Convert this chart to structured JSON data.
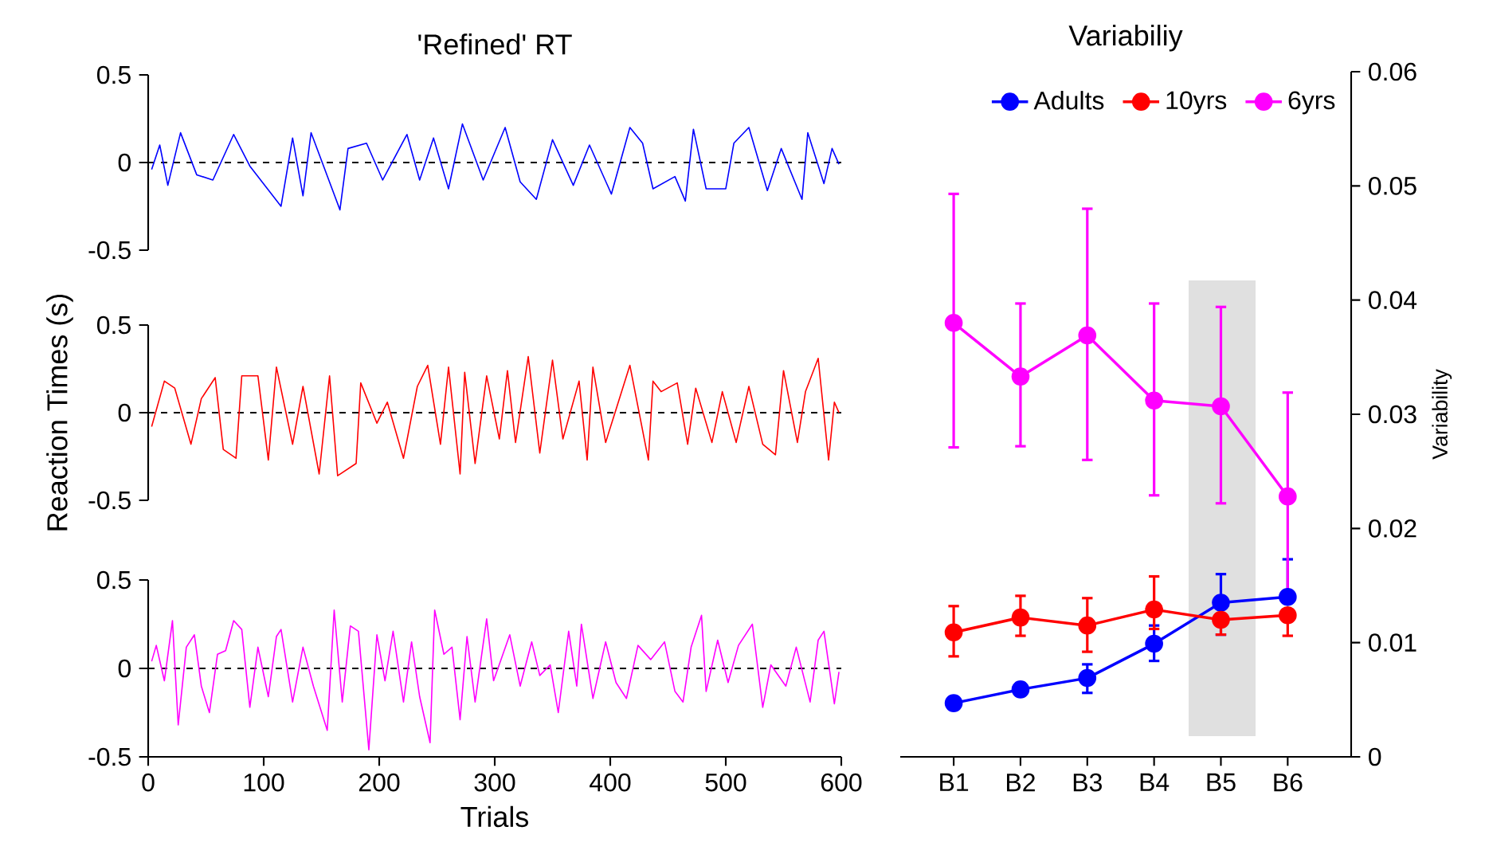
{
  "chart_data": [
    {
      "type": "line",
      "title": "'Refined' RT",
      "xlim": [
        0,
        600
      ],
      "ylim": [
        -0.5,
        0.5
      ],
      "yticks": [
        -0.5,
        0,
        0.5
      ],
      "tick_labels": "y",
      "ref_lines": [
        {
          "axis": "y",
          "value": 0,
          "color": "#000000",
          "line_style": "dashed"
        }
      ],
      "series": [
        {
          "color": "#0000ff",
          "x": [
            3,
            10,
            17,
            28,
            42,
            56,
            74,
            88,
            115,
            125,
            134,
            141,
            166,
            173,
            189,
            203,
            224,
            235,
            247,
            260,
            272,
            290,
            309,
            322,
            336,
            350,
            368,
            382,
            401,
            417,
            428,
            437,
            456,
            465,
            472,
            483,
            500,
            507,
            520,
            536,
            548,
            566,
            571,
            585,
            592,
            598
          ],
          "values": [
            -0.04,
            0.1,
            -0.13,
            0.17,
            -0.07,
            -0.1,
            0.16,
            -0.02,
            -0.25,
            0.14,
            -0.19,
            0.17,
            -0.27,
            0.08,
            0.11,
            -0.1,
            0.16,
            -0.1,
            0.14,
            -0.15,
            0.22,
            -0.1,
            0.2,
            -0.11,
            -0.21,
            0.13,
            -0.13,
            0.1,
            -0.18,
            0.2,
            0.11,
            -0.15,
            -0.08,
            -0.22,
            0.19,
            -0.15,
            -0.15,
            0.11,
            0.2,
            -0.16,
            0.08,
            -0.21,
            0.17,
            -0.12,
            0.08,
            -0.01
          ]
        }
      ]
    },
    {
      "type": "line",
      "ylabel": "Reaction Times (s)",
      "xlim": [
        0,
        600
      ],
      "ylim": [
        -0.5,
        0.5
      ],
      "yticks": [
        -0.5,
        0,
        0.5
      ],
      "tick_labels": "y",
      "ref_lines": [
        {
          "axis": "y",
          "value": 0,
          "color": "#000000",
          "line_style": "dashed"
        }
      ],
      "series": [
        {
          "color": "#ff0000",
          "x": [
            3,
            14,
            23,
            37,
            46,
            58,
            65,
            76,
            81,
            95,
            104,
            111,
            125,
            134,
            148,
            157,
            164,
            180,
            184,
            198,
            207,
            221,
            233,
            242,
            253,
            260,
            270,
            274,
            283,
            293,
            304,
            311,
            318,
            329,
            339,
            350,
            359,
            373,
            380,
            385,
            396,
            417,
            433,
            437,
            444,
            458,
            467,
            474,
            488,
            497,
            509,
            520,
            532,
            543,
            550,
            562,
            569,
            580,
            589,
            594,
            598
          ],
          "values": [
            -0.08,
            0.18,
            0.14,
            -0.18,
            0.08,
            0.2,
            -0.21,
            -0.26,
            0.21,
            0.21,
            -0.27,
            0.26,
            -0.18,
            0.15,
            -0.35,
            0.21,
            -0.36,
            -0.29,
            0.17,
            -0.06,
            0.06,
            -0.26,
            0.15,
            0.27,
            -0.18,
            0.26,
            -0.35,
            0.23,
            -0.29,
            0.21,
            -0.15,
            0.24,
            -0.17,
            0.32,
            -0.23,
            0.3,
            -0.15,
            0.18,
            -0.27,
            0.26,
            -0.17,
            0.27,
            -0.27,
            0.18,
            0.12,
            0.17,
            -0.18,
            0.14,
            -0.17,
            0.12,
            -0.17,
            0.15,
            -0.18,
            -0.24,
            0.24,
            -0.17,
            0.12,
            0.31,
            -0.27,
            0.06,
            0
          ]
        }
      ]
    },
    {
      "type": "line",
      "xlabel": "Trials",
      "xlim": [
        0,
        600
      ],
      "xticks": [
        0,
        100,
        200,
        300,
        400,
        500,
        600
      ],
      "ylim": [
        -0.5,
        0.5
      ],
      "yticks": [
        -0.5,
        0,
        0.5
      ],
      "ref_lines": [
        {
          "axis": "y",
          "value": 0,
          "color": "#000000",
          "line_style": "dashed"
        }
      ],
      "series": [
        {
          "color": "#ff00ff",
          "x": [
            3,
            7,
            14,
            21,
            26,
            33,
            40,
            46,
            53,
            60,
            67,
            74,
            81,
            88,
            95,
            104,
            111,
            115,
            125,
            134,
            143,
            155,
            161,
            168,
            175,
            182,
            191,
            198,
            205,
            212,
            221,
            228,
            235,
            244,
            248,
            256,
            263,
            270,
            276,
            283,
            293,
            299,
            313,
            322,
            332,
            339,
            348,
            355,
            364,
            371,
            375,
            385,
            396,
            405,
            414,
            424,
            435,
            447,
            456,
            463,
            470,
            479,
            483,
            493,
            502,
            511,
            523,
            532,
            539,
            552,
            561,
            573,
            580,
            585,
            594,
            598
          ],
          "values": [
            0.04,
            0.13,
            -0.07,
            0.27,
            -0.32,
            0.12,
            0.19,
            -0.1,
            -0.25,
            0.08,
            0.1,
            0.27,
            0.22,
            -0.22,
            0.12,
            -0.16,
            0.18,
            0.22,
            -0.19,
            0.12,
            -0.1,
            -0.35,
            0.33,
            -0.19,
            0.24,
            0.21,
            -0.46,
            0.19,
            -0.07,
            0.21,
            -0.19,
            0.15,
            -0.16,
            -0.42,
            0.33,
            0.08,
            0.12,
            -0.29,
            0.18,
            -0.19,
            0.28,
            -0.07,
            0.19,
            -0.1,
            0.15,
            -0.04,
            0.02,
            -0.25,
            0.21,
            -0.1,
            0.25,
            -0.17,
            0.15,
            -0.08,
            -0.17,
            0.13,
            0.05,
            0.15,
            -0.13,
            -0.19,
            0.12,
            0.3,
            -0.13,
            0.16,
            -0.08,
            0.13,
            0.25,
            -0.22,
            0.02,
            -0.1,
            0.12,
            -0.19,
            0.16,
            0.21,
            -0.2,
            -0.02
          ]
        }
      ]
    },
    {
      "type": "line",
      "title": "Variabiliy",
      "ylabel": "Variability",
      "categories": [
        "B1",
        "B2",
        "B3",
        "B4",
        "B5",
        "B6"
      ],
      "ylim": [
        0,
        0.06
      ],
      "yticks": [
        0,
        0.01,
        0.02,
        0.03,
        0.04,
        0.05,
        0.06
      ],
      "marker": "circle",
      "legend": "top",
      "series": [
        {
          "name": "Adults",
          "color": "#0000ff",
          "values": [
            0.0047,
            0.0059,
            0.0069,
            0.0099,
            0.0135,
            0.014
          ],
          "errors": [
            null,
            null,
            [
              0.0056,
              0.0081
            ],
            [
              0.0084,
              0.0115
            ],
            [
              0.0107,
              0.016
            ],
            [
              0.014,
              0.0173
            ]
          ]
        },
        {
          "name": "10yrs",
          "color": "#ff0000",
          "values": [
            0.0109,
            0.0122,
            0.0115,
            0.0129,
            0.012,
            0.0124
          ],
          "errors": [
            [
              0.0088,
              0.0132
            ],
            [
              0.0106,
              0.0141
            ],
            [
              0.0092,
              0.0139
            ],
            [
              0.0112,
              0.0158
            ],
            [
              0.0107,
              0.012
            ],
            [
              0.0106,
              0.0124
            ]
          ]
        },
        {
          "name": "6yrs",
          "color": "#ff00ff",
          "values": [
            0.038,
            0.0333,
            0.0369,
            0.0312,
            0.0307,
            0.0228
          ],
          "errors": [
            [
              0.0271,
              0.0493
            ],
            [
              0.0272,
              0.0397
            ],
            [
              0.026,
              0.048
            ],
            [
              0.0229,
              0.0397
            ],
            [
              0.0222,
              0.0394
            ],
            [
              0.0137,
              0.0319
            ]
          ]
        }
      ]
    }
  ]
}
